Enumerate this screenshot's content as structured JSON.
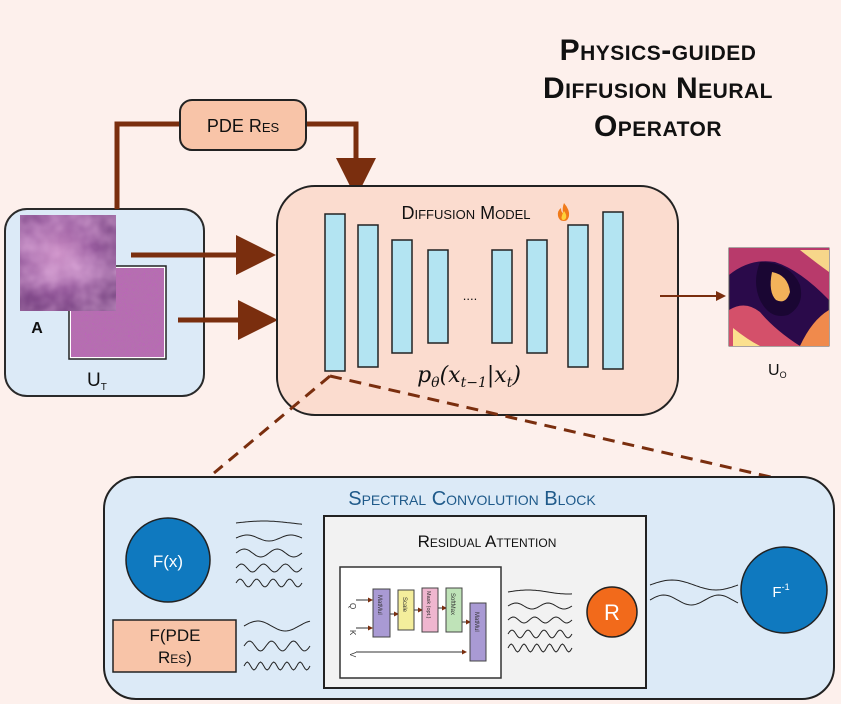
{
  "title": {
    "line1": "Physics-guided",
    "line2": "Diffusion Neural",
    "line3": "Operator"
  },
  "pde_res_label": "PDE Res",
  "input": {
    "a_label": "A",
    "ut_label": "U",
    "ut_sub": "T"
  },
  "diffusion": {
    "title": "Diffusion Model",
    "flame_icon": "flame-icon",
    "ellipsis": "....",
    "formula": "pθ(xt−1|xt)"
  },
  "output_label": "U",
  "output_sub": "O",
  "spectral": {
    "title": "Spectral Convolution Block",
    "fx_label": "F(x)",
    "fpde_line1": "F(PDE",
    "fpde_line2": "Res)",
    "finv_label": "F",
    "finv_sup": "-1",
    "residual_title": "Residual Attention",
    "r_label": "R",
    "attention": {
      "inputs": [
        "Q",
        "K",
        "V"
      ],
      "blocks": [
        "MatMul",
        "Scale",
        "Mask (opt.)",
        "SoftMax",
        "MatMul"
      ]
    }
  },
  "colors": {
    "background": "#fdf0ec",
    "panel_blue": "#dceaf7",
    "diffusion_fill": "#fbdccf",
    "pde_box": "#f8c4a8",
    "arrow_brown": "#7a2e0e",
    "layer_cyan": "#b3e4f2",
    "circle_blue": "#0f79bf",
    "r_orange": "#f26a1b",
    "spectral_title": "#1f5a8a"
  }
}
